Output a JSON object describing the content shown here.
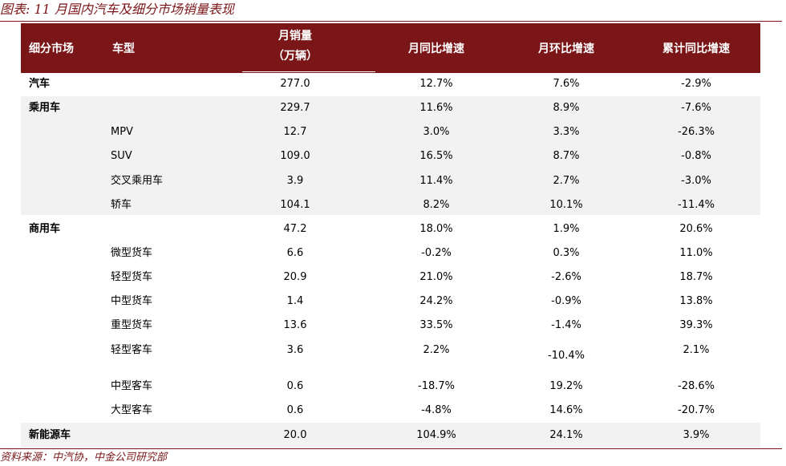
{
  "figure_title": "图表: 11 月国内汽车及细分市场销量表现",
  "source": "资料来源：中汽协，中金公司研究部",
  "colors": {
    "header_bg": "#7b1618",
    "band_bg": "#f2f2f2",
    "title_color": "#7b1618"
  },
  "headers": {
    "segment": "细分市场",
    "model": "车型",
    "sales_line1": "月销量",
    "sales_line2": "（万辆）",
    "yoy": "月同比增速",
    "mom": "月环比增速",
    "ytd_yoy": "累计同比增速"
  },
  "rows": [
    {
      "segment": "汽车",
      "model": "",
      "sales": "277.0",
      "yoy": "12.7%",
      "mom": "7.6%",
      "ytd": "-2.9%"
    },
    {
      "segment": "乘用车",
      "model": "",
      "sales": "229.7",
      "yoy": "11.6%",
      "mom": "8.9%",
      "ytd": "-7.6%"
    },
    {
      "segment": "",
      "model": "MPV",
      "sales": "12.7",
      "yoy": "3.0%",
      "mom": "3.3%",
      "ytd": "-26.3%"
    },
    {
      "segment": "",
      "model": "SUV",
      "sales": "109.0",
      "yoy": "16.5%",
      "mom": "8.7%",
      "ytd": "-0.8%"
    },
    {
      "segment": "",
      "model": "交叉乘用车",
      "sales": "3.9",
      "yoy": "11.4%",
      "mom": "2.7%",
      "ytd": "-3.0%"
    },
    {
      "segment": "",
      "model": "轿车",
      "sales": "104.1",
      "yoy": "8.2%",
      "mom": "10.1%",
      "ytd": "-11.4%"
    },
    {
      "segment": "商用车",
      "model": "",
      "sales": "47.2",
      "yoy": "18.0%",
      "mom": "1.9%",
      "ytd": "20.6%"
    },
    {
      "segment": "",
      "model": "微型货车",
      "sales": "6.6",
      "yoy": "-0.2%",
      "mom": "0.3%",
      "ytd": "11.0%"
    },
    {
      "segment": "",
      "model": "轻型货车",
      "sales": "20.9",
      "yoy": "21.0%",
      "mom": "-2.6%",
      "ytd": "18.7%"
    },
    {
      "segment": "",
      "model": "中型货车",
      "sales": "1.4",
      "yoy": "24.2%",
      "mom": "-0.9%",
      "ytd": "13.8%"
    },
    {
      "segment": "",
      "model": "重型货车",
      "sales": "13.6",
      "yoy": "33.5%",
      "mom": "-1.4%",
      "ytd": "39.3%"
    },
    {
      "segment": "",
      "model": "轻型客车",
      "sales": "3.6",
      "yoy": "2.2%",
      "mom": "-10.4%",
      "ytd": "2.1%"
    },
    {
      "segment": "",
      "model": "中型客车",
      "sales": "0.6",
      "yoy": "-18.7%",
      "mom": "19.2%",
      "ytd": "-28.6%"
    },
    {
      "segment": "",
      "model": "大型客车",
      "sales": "0.6",
      "yoy": "-4.8%",
      "mom": "14.6%",
      "ytd": "-20.7%"
    },
    {
      "segment": "新能源车",
      "model": "",
      "sales": "20.0",
      "yoy": "104.9%",
      "mom": "24.1%",
      "ytd": "3.9%"
    }
  ]
}
